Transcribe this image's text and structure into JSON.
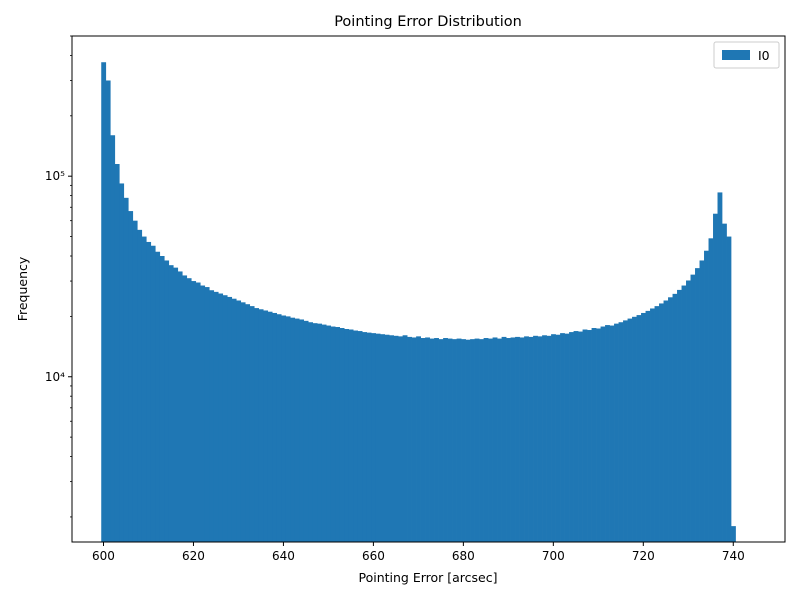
{
  "chart_data": {
    "type": "bar",
    "title": "Pointing Error Distribution",
    "xlabel": "Pointing Error [arcsec]",
    "ylabel": "Frequency",
    "xlim": [
      593,
      751.5
    ],
    "ylim": [
      1500,
      500000
    ],
    "y_scale": "log",
    "x_ticks": [
      600,
      620,
      640,
      660,
      680,
      700,
      720,
      740
    ],
    "y_ticks": [
      {
        "value": 10000,
        "label": "10⁴"
      },
      {
        "value": 100000,
        "label": "10⁵"
      }
    ],
    "grid": false,
    "legend": {
      "position": "top-right",
      "entries": [
        "I0"
      ]
    },
    "colors": {
      "I0": "#1f77b4"
    },
    "bin_start": 599.5,
    "bin_width": 1.0,
    "series": [
      {
        "name": "I0",
        "values": [
          370000,
          300000,
          160000,
          115000,
          92000,
          78000,
          67000,
          60000,
          54000,
          50000,
          47000,
          45000,
          42000,
          40000,
          38000,
          36000,
          35000,
          33500,
          32000,
          31000,
          30000,
          29500,
          28500,
          28000,
          27000,
          26500,
          26000,
          25500,
          25000,
          24500,
          24000,
          23500,
          23000,
          22500,
          22000,
          21700,
          21400,
          21100,
          20800,
          20500,
          20200,
          20000,
          19700,
          19500,
          19300,
          19000,
          18700,
          18500,
          18400,
          18200,
          18000,
          17800,
          17700,
          17500,
          17300,
          17200,
          17000,
          16900,
          16700,
          16600,
          16500,
          16400,
          16300,
          16200,
          16100,
          16000,
          15900,
          16100,
          15800,
          15700,
          15900,
          15600,
          15700,
          15500,
          15600,
          15400,
          15600,
          15500,
          15400,
          15500,
          15400,
          15300,
          15400,
          15500,
          15400,
          15600,
          15500,
          15700,
          15500,
          15800,
          15600,
          15700,
          15800,
          15700,
          15900,
          15800,
          16000,
          15900,
          16100,
          16000,
          16300,
          16200,
          16500,
          16400,
          16700,
          16900,
          16800,
          17200,
          17100,
          17500,
          17400,
          17800,
          18100,
          18000,
          18400,
          18700,
          19100,
          19500,
          19900,
          20300,
          20800,
          21300,
          21900,
          22500,
          23200,
          24000,
          24900,
          25900,
          27100,
          28500,
          30200,
          32300,
          34800,
          38000,
          42500,
          49000,
          65000,
          83000,
          58000,
          50000,
          1800
        ]
      }
    ]
  }
}
